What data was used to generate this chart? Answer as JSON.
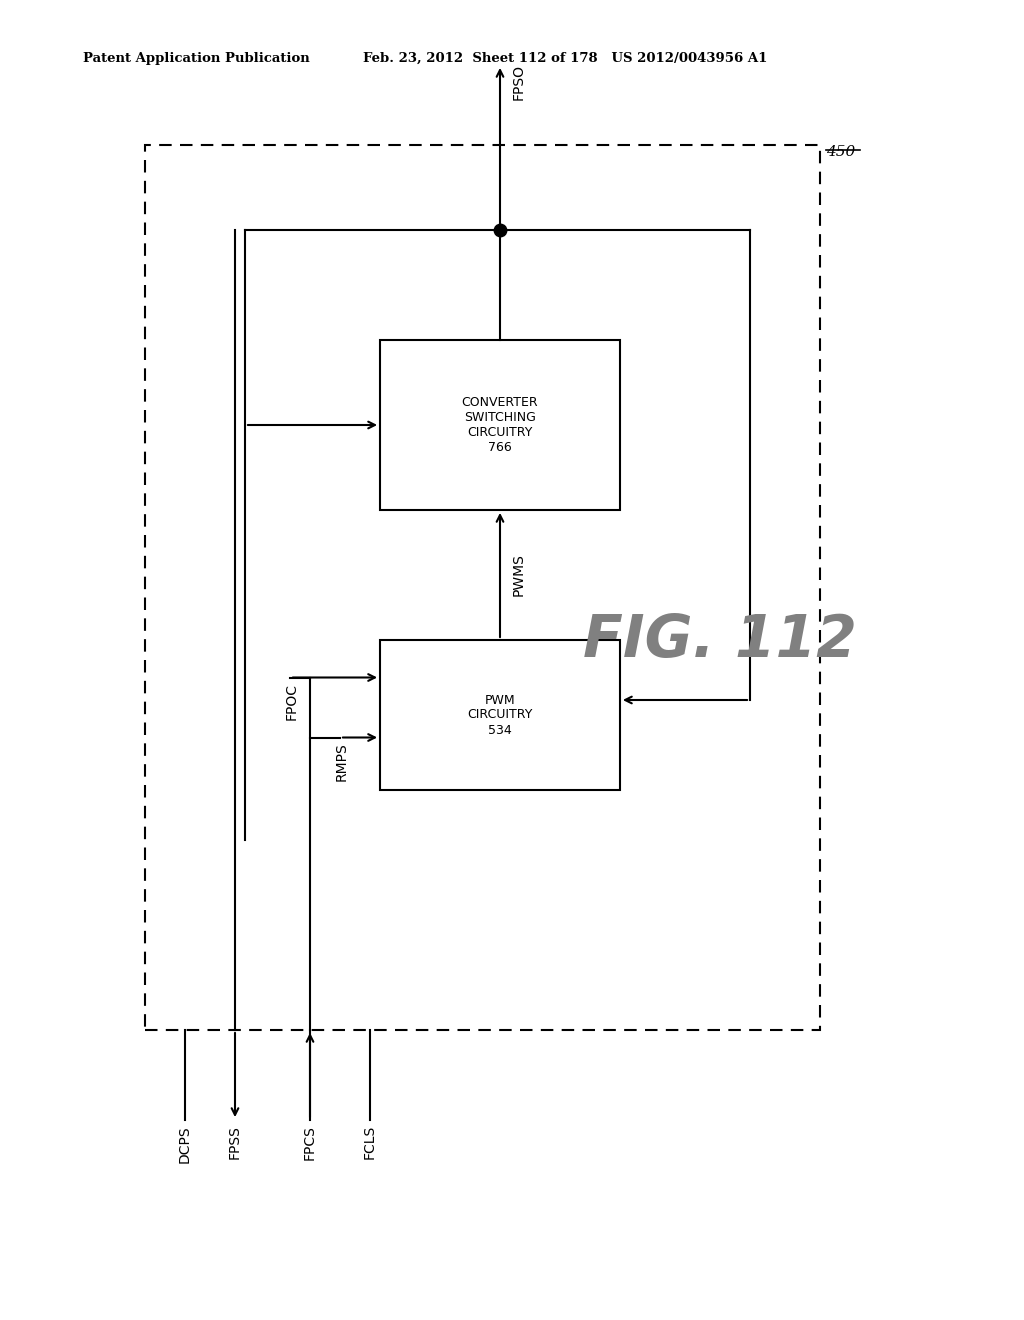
{
  "title_left": "Patent Application Publication",
  "title_right": "Feb. 23, 2012  Sheet 112 of 178   US 2012/0043956 A1",
  "fig_label": "FIG. 112",
  "label_450": "450",
  "box1_label": "CONVERTER\nSWITCHING\nCIRCUITRY\n766",
  "box2_label": "PWM\nCIRCUITRY\n534",
  "signal_FPSO": "FPSO",
  "signal_PWMS": "PWMS",
  "signal_FPOC": "FPOC",
  "signal_RMPS": "RMPS",
  "signal_DCPS": "DCPS",
  "signal_FPSS": "FPSS",
  "signal_FPCS": "FPCS",
  "signal_FCLS": "FCLS",
  "bg_color": "#ffffff",
  "line_color": "#000000",
  "text_color": "#000000",
  "fig_label_color": "#808080"
}
